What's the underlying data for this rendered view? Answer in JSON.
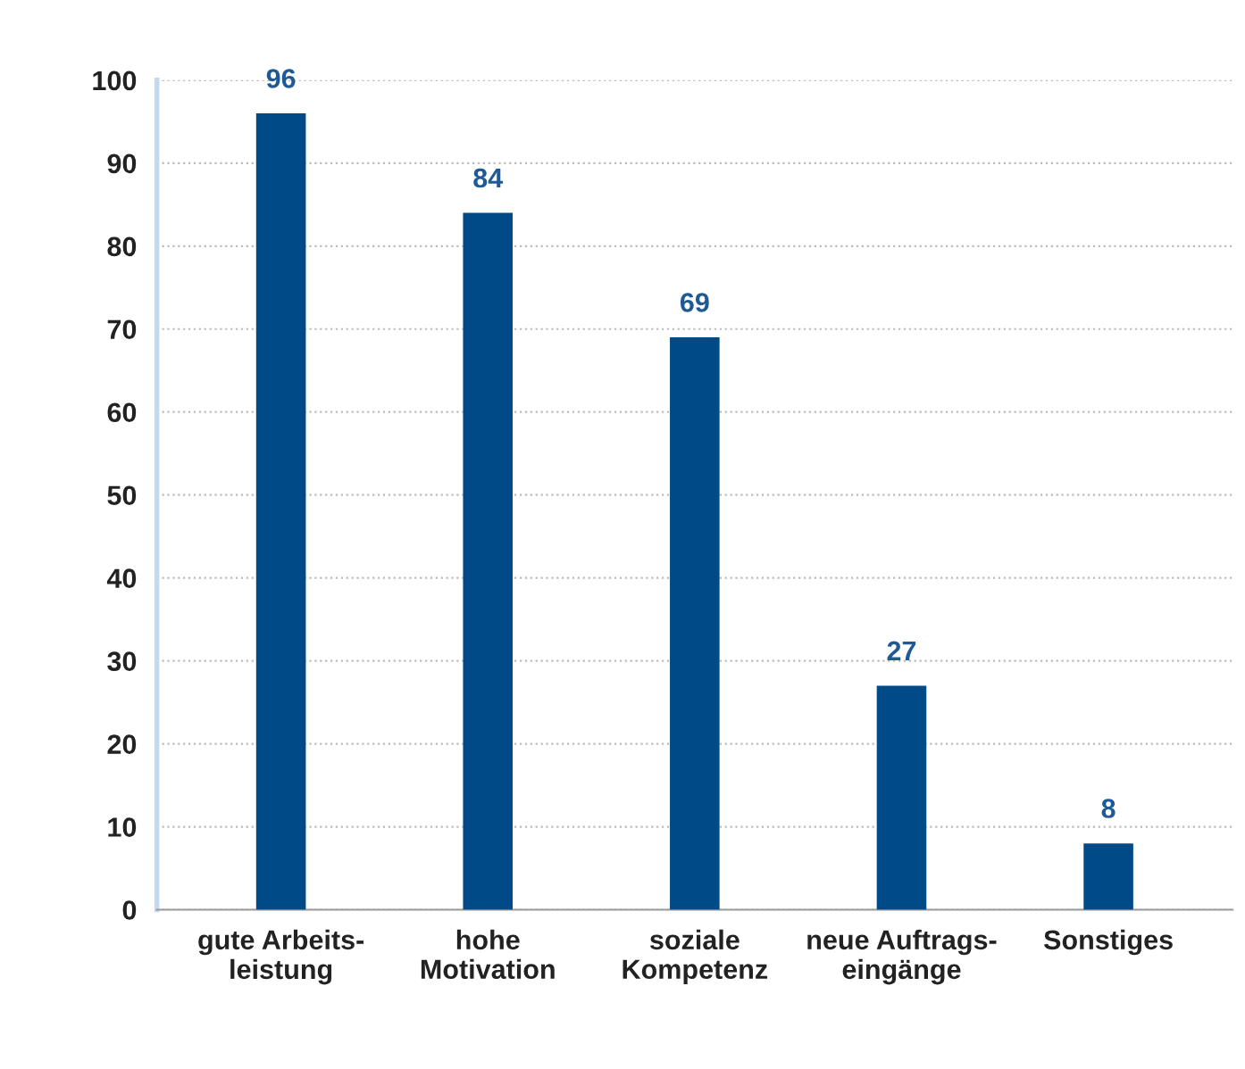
{
  "chart_data": {
    "type": "bar",
    "categories": [
      "gute Arbeits-\nleistung",
      "hohe\nMotivation",
      "soziale\nKompetenz",
      "neue Auftrags-\neingänge",
      "Sonstiges"
    ],
    "values": [
      96,
      84,
      69,
      27,
      8
    ],
    "color": "#004a87",
    "ylim": [
      0,
      100
    ],
    "yticks": [
      0,
      10,
      20,
      30,
      40,
      50,
      60,
      70,
      80,
      90,
      100
    ],
    "grid": "y",
    "data_labels": true
  }
}
